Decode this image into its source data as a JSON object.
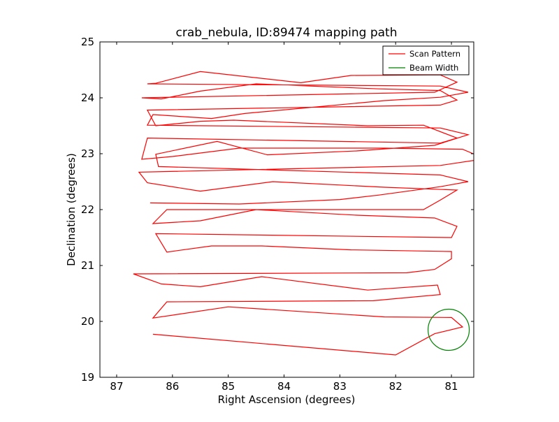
{
  "chart_data": {
    "type": "line",
    "title": "crab_nebula, ID:89474 mapping path",
    "xlabel": "Right Ascension (degrees)",
    "ylabel": "Declination (degrees)",
    "xlim": [
      87.3,
      80.6
    ],
    "ylim": [
      19,
      25
    ],
    "x_inverted": true,
    "xticks": [
      87,
      86,
      85,
      84,
      83,
      82,
      81
    ],
    "yticks": [
      19,
      20,
      21,
      22,
      23,
      24,
      25
    ],
    "grid": false,
    "legend_position": "top-right",
    "series": [
      {
        "name": "Scan Pattern",
        "color": "#ff0000",
        "kind": "line",
        "x": [
          86.35,
          82.0,
          81.3,
          80.8,
          81.0,
          82.2,
          85.0,
          86.35,
          86.1,
          82.4,
          81.2,
          81.25,
          82.5,
          84.4,
          85.5,
          86.2,
          86.7,
          81.8,
          81.3,
          81.0,
          81.0,
          82.8,
          84.4,
          85.3,
          86.1,
          86.3,
          81.0,
          80.9,
          81.3,
          82.7,
          84.5,
          85.5,
          86.35,
          86.1,
          81.5,
          81.2,
          80.9,
          82.2,
          84.2,
          85.5,
          86.45,
          86.6,
          81.2,
          80.4,
          80.8,
          82.2,
          84.8,
          86.0,
          86.55,
          86.45,
          81.2,
          80.9,
          81.5,
          82.5,
          84.9,
          85.5,
          86.3,
          86.45,
          81.2,
          80.9,
          81.2,
          82.3,
          84.5,
          85.5,
          86.2,
          86.55,
          81.3,
          80.9,
          81.2,
          82.8,
          83.7,
          85.5,
          86.3,
          86.45,
          81.2,
          80.7,
          81.2,
          82.2,
          84.7,
          85.3,
          86.35,
          86.45,
          81.2,
          80.7,
          81.3,
          82.7,
          84.3,
          85.2,
          86.3,
          86.25,
          81.2,
          80.7,
          81.2,
          82.3,
          83.0,
          84.8,
          86.4
        ],
        "y": [
          19.77,
          19.4,
          19.78,
          19.9,
          20.07,
          20.08,
          20.26,
          20.06,
          20.35,
          20.37,
          20.48,
          20.65,
          20.56,
          20.8,
          20.62,
          20.67,
          20.85,
          20.87,
          20.93,
          21.12,
          21.25,
          21.28,
          21.35,
          21.35,
          21.24,
          21.57,
          21.5,
          21.7,
          21.85,
          21.9,
          22.0,
          21.8,
          21.75,
          22.0,
          22.0,
          22.17,
          22.35,
          22.4,
          22.5,
          22.33,
          22.48,
          22.67,
          22.79,
          22.91,
          23.08,
          23.1,
          23.1,
          22.95,
          22.9,
          23.28,
          23.19,
          23.28,
          23.51,
          23.5,
          23.6,
          23.58,
          23.5,
          23.78,
          23.87,
          23.96,
          24.13,
          24.16,
          24.25,
          24.12,
          23.98,
          24.0,
          24.1,
          24.28,
          24.41,
          24.4,
          24.27,
          24.47,
          24.26,
          24.25,
          24.21,
          24.1,
          24.01,
          23.95,
          23.72,
          23.63,
          23.7,
          23.51,
          23.46,
          23.34,
          23.15,
          23.05,
          22.98,
          23.22,
          22.99,
          22.77,
          22.62,
          22.5,
          22.41,
          22.26,
          22.18,
          22.1,
          22.12
        ]
      },
      {
        "name": "Beam Width",
        "color": "#008000",
        "kind": "circle",
        "center": [
          81.05,
          19.85
        ],
        "radius": 0.37
      }
    ]
  }
}
